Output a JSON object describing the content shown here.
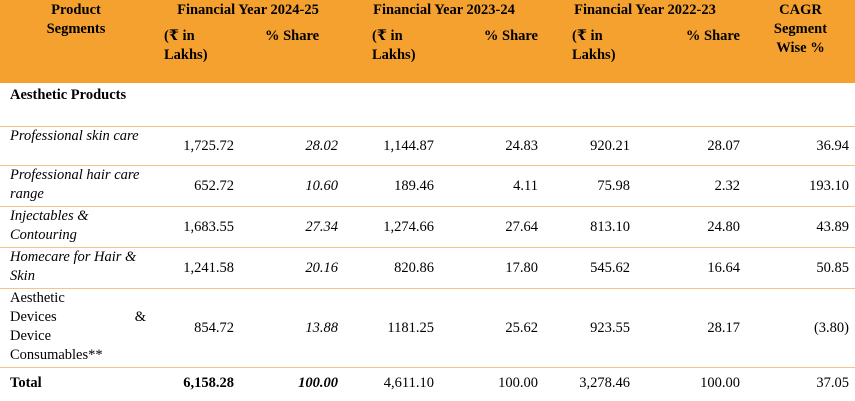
{
  "header": {
    "segments_title": "Product Segments",
    "years": [
      "Financial Year 2024-25",
      "Financial Year 2023-24",
      "Financial Year 2022-23"
    ],
    "amount_label": "(₹ in Lakhs)",
    "share_label": "% Share",
    "cagr_title": "CAGR Segment Wise %"
  },
  "group_title": "Aesthetic Products",
  "rows": [
    {
      "segment": "Professional skin care",
      "v1": "1,725.72",
      "s1": "28.02",
      "v2": "1,144.87",
      "s2": "24.83",
      "v3": "920.21",
      "s3": "28.07",
      "cagr": "36.94"
    },
    {
      "segment": "Professional hair care range",
      "v1": "652.72",
      "s1": "10.60",
      "v2": "189.46",
      "s2": "4.11",
      "v3": "75.98",
      "s3": "2.32",
      "cagr": "193.10"
    },
    {
      "segment": "Injectables & Contouring",
      "v1": "1,683.55",
      "s1": "27.34",
      "v2": "1,274.66",
      "s2": "27.64",
      "v3": "813.10",
      "s3": "24.80",
      "cagr": "43.89"
    },
    {
      "segment": "Homecare for Hair & Skin",
      "v1": "1,241.58",
      "s1": "20.16",
      "v2": "820.86",
      "s2": "17.80",
      "v3": "545.62",
      "s3": "16.64",
      "cagr": "50.85"
    },
    {
      "segment_a": "Aesthetic",
      "segment_b": "Devices",
      "segment_amp": "&",
      "segment_c": "Device",
      "segment_d": "Consumables**",
      "v1": "854.72",
      "s1": "13.88",
      "v2": "1181.25",
      "s2": "25.62",
      "v3": "923.55",
      "s3": "28.17",
      "cagr": "(3.80)"
    }
  ],
  "total": {
    "label": "Total",
    "v1": "6,158.28",
    "s1": "100.00",
    "v2": "4,611.10",
    "s2": "100.00",
    "v3": "3,278.46",
    "s3": "100.00",
    "cagr": "37.05"
  }
}
